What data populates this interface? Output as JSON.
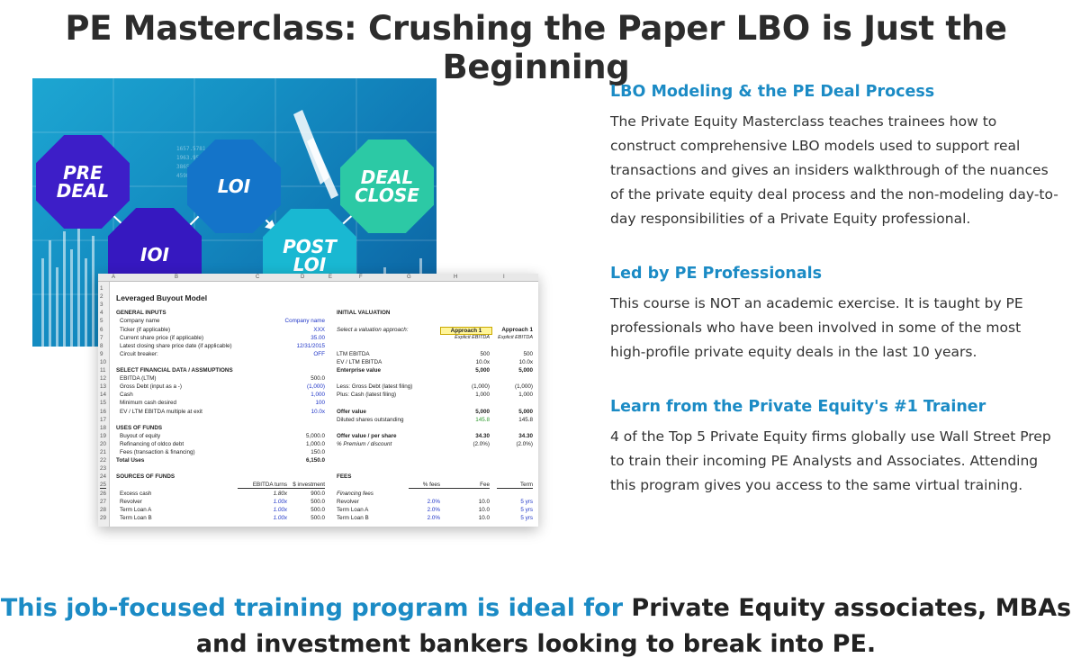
{
  "page_title": "PE Masterclass: Crushing the Paper LBO is Just the Beginning",
  "hero": {
    "stages": [
      {
        "line1": "PRE",
        "line2": "DEAL",
        "color": "#3d1ec8"
      },
      {
        "line1": "IOI",
        "line2": "",
        "color": "#3618c0"
      },
      {
        "line1": "LOI",
        "line2": "",
        "color": "#1474c9"
      },
      {
        "line1": "POST",
        "line2": "LOI",
        "color": "#19b8d2"
      },
      {
        "line1": "DEAL",
        "line2": "CLOSE",
        "color": "#2cc9a5"
      }
    ]
  },
  "spreadsheet": {
    "columns": [
      "A",
      "B",
      "C",
      "D",
      "E",
      "F",
      "G",
      "H",
      "I"
    ],
    "title": "Leveraged Buyout Model",
    "rows": [
      {
        "n": "1"
      },
      {
        "n": "2",
        "b": "Leveraged Buyout Model"
      },
      {
        "n": "3"
      },
      {
        "n": "4",
        "b": "GENERAL INPUTS",
        "f": "INITIAL VALUATION"
      },
      {
        "n": "5",
        "b": "Company name",
        "d": "Company name"
      },
      {
        "n": "6",
        "b": "Ticker (if applicable)",
        "d": "XXX",
        "f": "Select a valuation approach:",
        "h": "Approach 1",
        "i": "Approach 1"
      },
      {
        "n": "7",
        "b": "Current share price (if applicable)",
        "d": "35.00",
        "h": "Explicit EBITDA",
        "i": "Explicit EBITDA"
      },
      {
        "n": "8",
        "b": "Latest closing share price date (if applicable)",
        "d": "12/31/2015"
      },
      {
        "n": "9",
        "b": "Circuit breaker:",
        "d": "OFF",
        "f": "LTM EBITDA",
        "h": "500",
        "i": "500"
      },
      {
        "n": "10",
        "f": "EV / LTM EBITDA",
        "h": "10.0x",
        "i": "10.0x"
      },
      {
        "n": "11",
        "b": "SELECT FINANCIAL DATA / ASSMUPTIONS",
        "f": "Enterprise value",
        "h": "5,000",
        "i": "5,000"
      },
      {
        "n": "12",
        "b": "EBITDA (LTM)",
        "d": "500.0"
      },
      {
        "n": "13",
        "b": "Gross Debt (input as a -)",
        "d": "(1,000)",
        "f": "Less: Gross Debt (latest filing)",
        "h": "(1,000)",
        "i": "(1,000)"
      },
      {
        "n": "14",
        "b": "Cash",
        "d": "1,000",
        "f": "Plus: Cash (latest filing)",
        "h": "1,000",
        "i": "1,000"
      },
      {
        "n": "15",
        "b": "Minimum cash desired",
        "d": "100"
      },
      {
        "n": "16",
        "b": "EV / LTM EBITDA multiple at exit",
        "d": "10.0x",
        "f": "Offer value",
        "h": "5,000",
        "i": "5,000"
      },
      {
        "n": "17",
        "f": "Diluted shares outstanding",
        "h": "145.8",
        "i": "145.8"
      },
      {
        "n": "18",
        "b": "USES OF FUNDS"
      },
      {
        "n": "19",
        "b": "Buyout of equity",
        "d": "5,000.0",
        "f": "Offer value / per share",
        "h": "34.30",
        "i": "34.30"
      },
      {
        "n": "20",
        "b": "Refinancing of oldco debt",
        "d": "1,000.0",
        "f": "% Premium / discount",
        "h": "(2.0%)",
        "i": "(2.0%)"
      },
      {
        "n": "21",
        "b": "Fees (transaction & financing)",
        "d": "150.0"
      },
      {
        "n": "22",
        "b": "Total Uses",
        "d": "6,150.0"
      },
      {
        "n": "23"
      },
      {
        "n": "24",
        "b": "SOURCES OF FUNDS",
        "f": "FEES"
      },
      {
        "n": "25",
        "c": "EBITDA turns",
        "d": "$ investment",
        "g": "% fees",
        "h": "Fee",
        "i": "Term"
      },
      {
        "n": "26",
        "b": "Excess cash",
        "c": "1.80x",
        "d": "900.0",
        "f": "Financing fees"
      },
      {
        "n": "27",
        "b": "Revolver",
        "c": "1.00x",
        "d": "500.0",
        "f": "Revolver",
        "g": "2.0%",
        "h": "10.0",
        "i": "5 yrs"
      },
      {
        "n": "28",
        "b": "Term Loan A",
        "c": "1.00x",
        "d": "500.0",
        "f": "Term Loan A",
        "g": "2.0%",
        "h": "10.0",
        "i": "5 yrs"
      },
      {
        "n": "29",
        "b": "Term Loan B",
        "c": "1.00x",
        "d": "500.0",
        "f": "Term Loan B",
        "g": "2.0%",
        "h": "10.0",
        "i": "5 yrs"
      }
    ]
  },
  "sections": [
    {
      "heading": "LBO Modeling & the PE Deal Process",
      "body": "The Private Equity Masterclass teaches trainees how to construct comprehensive LBO models used to support real transactions and gives an insiders walkthrough of the nuances of the private equity deal process and the non-modeling day-to-day responsibilities of a Private Equity professional."
    },
    {
      "heading": "Led by PE Professionals",
      "body": "This course is NOT an academic exercise. It is taught by PE professionals who have been involved in some of the most high-profile private equity deals in the last 10 years."
    },
    {
      "heading": "Learn from the Private Equity's #1 Trainer",
      "body": "4 of the Top 5 Private Equity firms globally use Wall Street Prep to train their incoming PE Analysts and Associates. Attending this program gives you access to the same virtual training."
    }
  ],
  "tagline": {
    "accent": "This job-focused training program is ideal for",
    "rest": " Private Equity associates, MBAs and investment bankers looking to break into PE."
  },
  "colors": {
    "accent": "#1b8bc5",
    "title": "#2c2c2c"
  }
}
